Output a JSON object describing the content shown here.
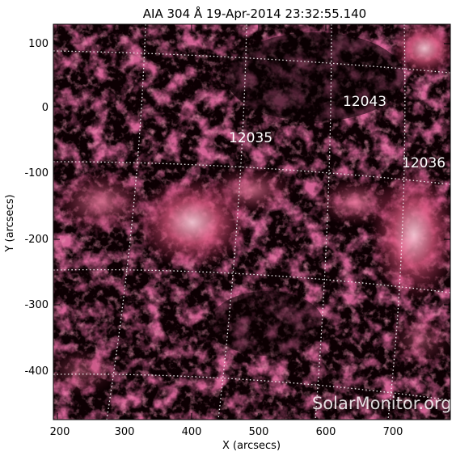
{
  "title": "AIA 304 Å 19-Apr-2014 23:32:55.140",
  "axes": {
    "x_label": "X (arcsecs)",
    "y_label": "Y (arcsecs)",
    "x_ticks": [
      "200",
      "300",
      "400",
      "500",
      "600",
      "700"
    ],
    "y_ticks": [
      "100",
      "0",
      "-100",
      "-200",
      "-300",
      "-400"
    ]
  },
  "active_regions": [
    {
      "id": "12035"
    },
    {
      "id": "12043"
    },
    {
      "id": "12036"
    }
  ],
  "watermark": "SolarMonitor.org",
  "colors": {
    "background": "#0d0003",
    "plasma_dim": "#5a0a22",
    "plasma_mid": "#a8244f",
    "plasma_bright": "#f3b2c6",
    "grid": "#ffffff"
  }
}
